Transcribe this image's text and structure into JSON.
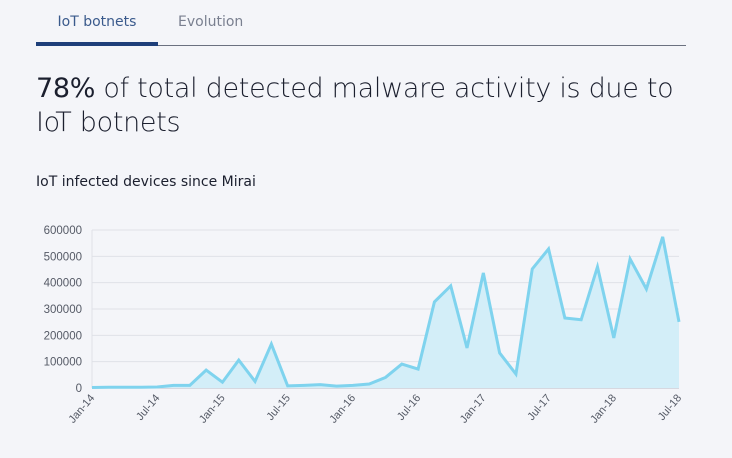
{
  "tabs": [
    {
      "label": "IoT botnets",
      "active": true
    },
    {
      "label": "Evolution",
      "active": false
    }
  ],
  "headline": {
    "highlight": "78%",
    "rest": " of total detected malware activity is due to IoT botnets"
  },
  "subtitle": "IoT infected devices since Mirai",
  "colors": {
    "line": "#7fd3ee",
    "fill": "#d3eef8",
    "tab_active": "#1e3f7a",
    "background": "#f4f5f9"
  },
  "chart_data": {
    "type": "area",
    "title": "IoT infected devices since Mirai",
    "xlabel": "",
    "ylabel": "",
    "ylim": [
      0,
      600000
    ],
    "y_ticks": [
      "0",
      "100000",
      "200000",
      "300000",
      "400000",
      "500000",
      "600000"
    ],
    "x_tick_labels": [
      "Jan-14",
      "Jul-14",
      "Jan-15",
      "Jul-15",
      "Jan-16",
      "Jul-16",
      "Jan-17",
      "Jul-17",
      "Jan-18",
      "Jul-18"
    ],
    "points_per_tick": 4,
    "grid": true,
    "values": [
      2000,
      3000,
      3000,
      3000,
      4000,
      10000,
      10000,
      68000,
      22000,
      106000,
      25000,
      167000,
      8000,
      10000,
      13000,
      7000,
      10000,
      15000,
      40000,
      91000,
      72000,
      327000,
      388000,
      152000,
      437000,
      133000,
      53000,
      452000,
      528000,
      266000,
      259000,
      460000,
      190000,
      490000,
      376000,
      574000,
      251000
    ]
  }
}
